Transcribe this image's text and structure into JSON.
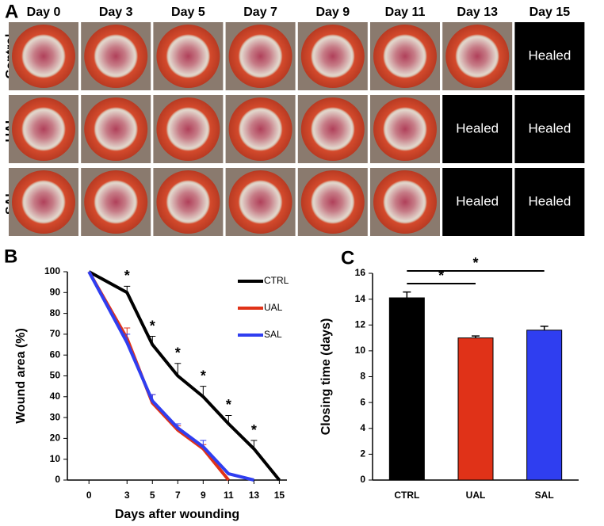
{
  "panel_a": {
    "label": "A",
    "columns": [
      "Day 0",
      "Day 3",
      "Day 5",
      "Day 7",
      "Day 9",
      "Day 11",
      "Day 13",
      "Day 15"
    ],
    "rows": [
      {
        "label": "Control",
        "cells": [
          null,
          null,
          null,
          null,
          null,
          null,
          null,
          "Healed"
        ]
      },
      {
        "label": "UAL",
        "cells": [
          null,
          null,
          null,
          null,
          null,
          null,
          "Healed",
          "Healed"
        ]
      },
      {
        "label": "SAL",
        "cells": [
          null,
          null,
          null,
          null,
          null,
          null,
          "Healed",
          "Healed"
        ]
      }
    ]
  },
  "chart_data": [
    {
      "label": "B",
      "type": "line",
      "xlabel": "Days after wounding",
      "ylabel": "Wound area (%)",
      "x": [
        0,
        3,
        5,
        7,
        9,
        11,
        13,
        15
      ],
      "xlim": [
        -1.7,
        15.6
      ],
      "xticks": [
        0,
        3,
        5,
        7,
        9,
        11,
        13,
        15
      ],
      "ylim": [
        0,
        100
      ],
      "yticks": [
        0,
        10,
        20,
        30,
        40,
        50,
        60,
        70,
        80,
        90,
        100
      ],
      "series": [
        {
          "name": "CTRL",
          "color": "#000000",
          "values": [
            100,
            90,
            65,
            50,
            40,
            27,
            15,
            0
          ],
          "errors": [
            null,
            3,
            4,
            6,
            5,
            4,
            4,
            null
          ]
        },
        {
          "name": "UAL",
          "color": "#e03218",
          "values": [
            100,
            68,
            37,
            24,
            15,
            0,
            null,
            null
          ],
          "errors": [
            null,
            5,
            4,
            2,
            2,
            null,
            null,
            null
          ]
        },
        {
          "name": "SAL",
          "color": "#2f3ef0",
          "values": [
            100,
            66,
            38,
            25,
            16,
            3,
            0,
            null
          ],
          "errors": [
            null,
            4,
            3,
            2,
            3,
            null,
            null,
            null
          ]
        }
      ],
      "annotations": [
        {
          "text": "*",
          "x": 3
        },
        {
          "text": "*",
          "x": 5
        },
        {
          "text": "*",
          "x": 7
        },
        {
          "text": "*",
          "x": 9
        },
        {
          "text": "*",
          "x": 11
        },
        {
          "text": "*",
          "x": 13
        }
      ]
    },
    {
      "label": "C",
      "type": "bar",
      "ylabel": "Closing time (days)",
      "categories": [
        "CTRL",
        "UAL",
        "SAL"
      ],
      "values": [
        14.1,
        11.0,
        11.6
      ],
      "errors": [
        0.45,
        0.15,
        0.3
      ],
      "colors": [
        "#000000",
        "#e03218",
        "#2f3ef0"
      ],
      "ylim": [
        0,
        16
      ],
      "yticks": [
        0,
        2,
        4,
        6,
        8,
        10,
        12,
        14,
        16
      ],
      "comparisons": [
        {
          "groups": [
            "CTRL",
            "UAL"
          ],
          "label": "*"
        },
        {
          "groups": [
            "CTRL",
            "SAL"
          ],
          "label": "*"
        }
      ]
    }
  ]
}
